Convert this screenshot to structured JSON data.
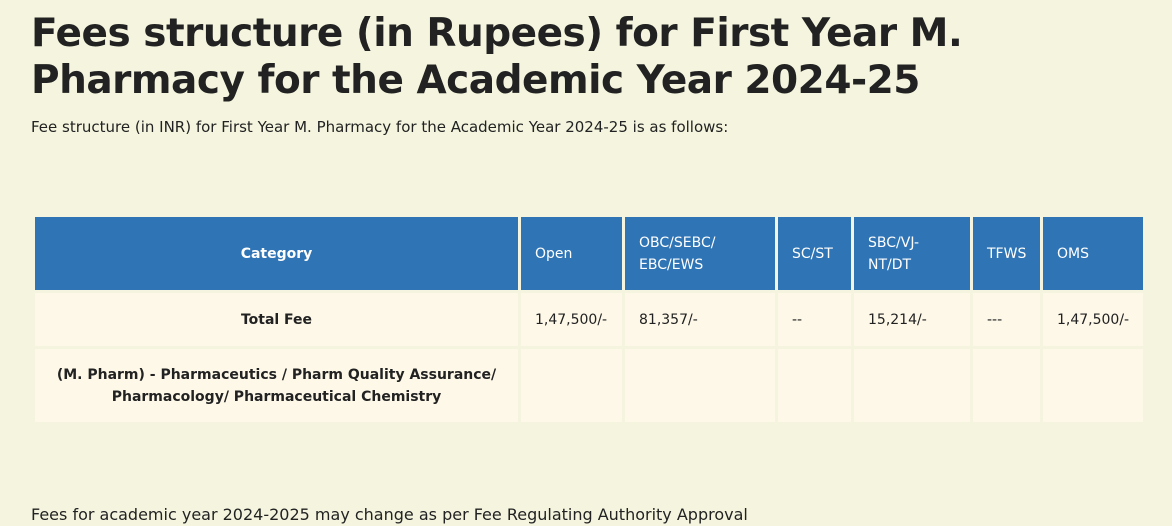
{
  "title": "Fees structure (in Rupees) for First Year M. Pharmacy for the Academic Year 2024-25",
  "intro": "Fee structure (in INR) for First Year M. Pharmacy for the Academic Year 2024-25 is as follows:",
  "table": {
    "headers": [
      "Category",
      "Open",
      "OBC/SEBC/ EBC/EWS",
      "SC/ST",
      "SBC/VJ- NT/DT",
      "TFWS",
      "OMS"
    ],
    "rows": [
      [
        "Total Fee",
        "1,47,500/-",
        "81,357/-",
        "--",
        "15,214/-",
        "---",
        "1,47,500/-"
      ],
      [
        "(M. Pharm) - Pharmaceutics / Pharm Quality Assurance/ Pharmacology/ Pharmaceutical Chemistry",
        "",
        "",
        "",
        "",
        "",
        ""
      ]
    ]
  },
  "footer": "Fees for academic year 2024-2025 may change as per Fee Regulating Authority Approval",
  "colors": {
    "background": "#f5f5df",
    "header": "#2f74b5",
    "cell": "#fdf8e8"
  }
}
